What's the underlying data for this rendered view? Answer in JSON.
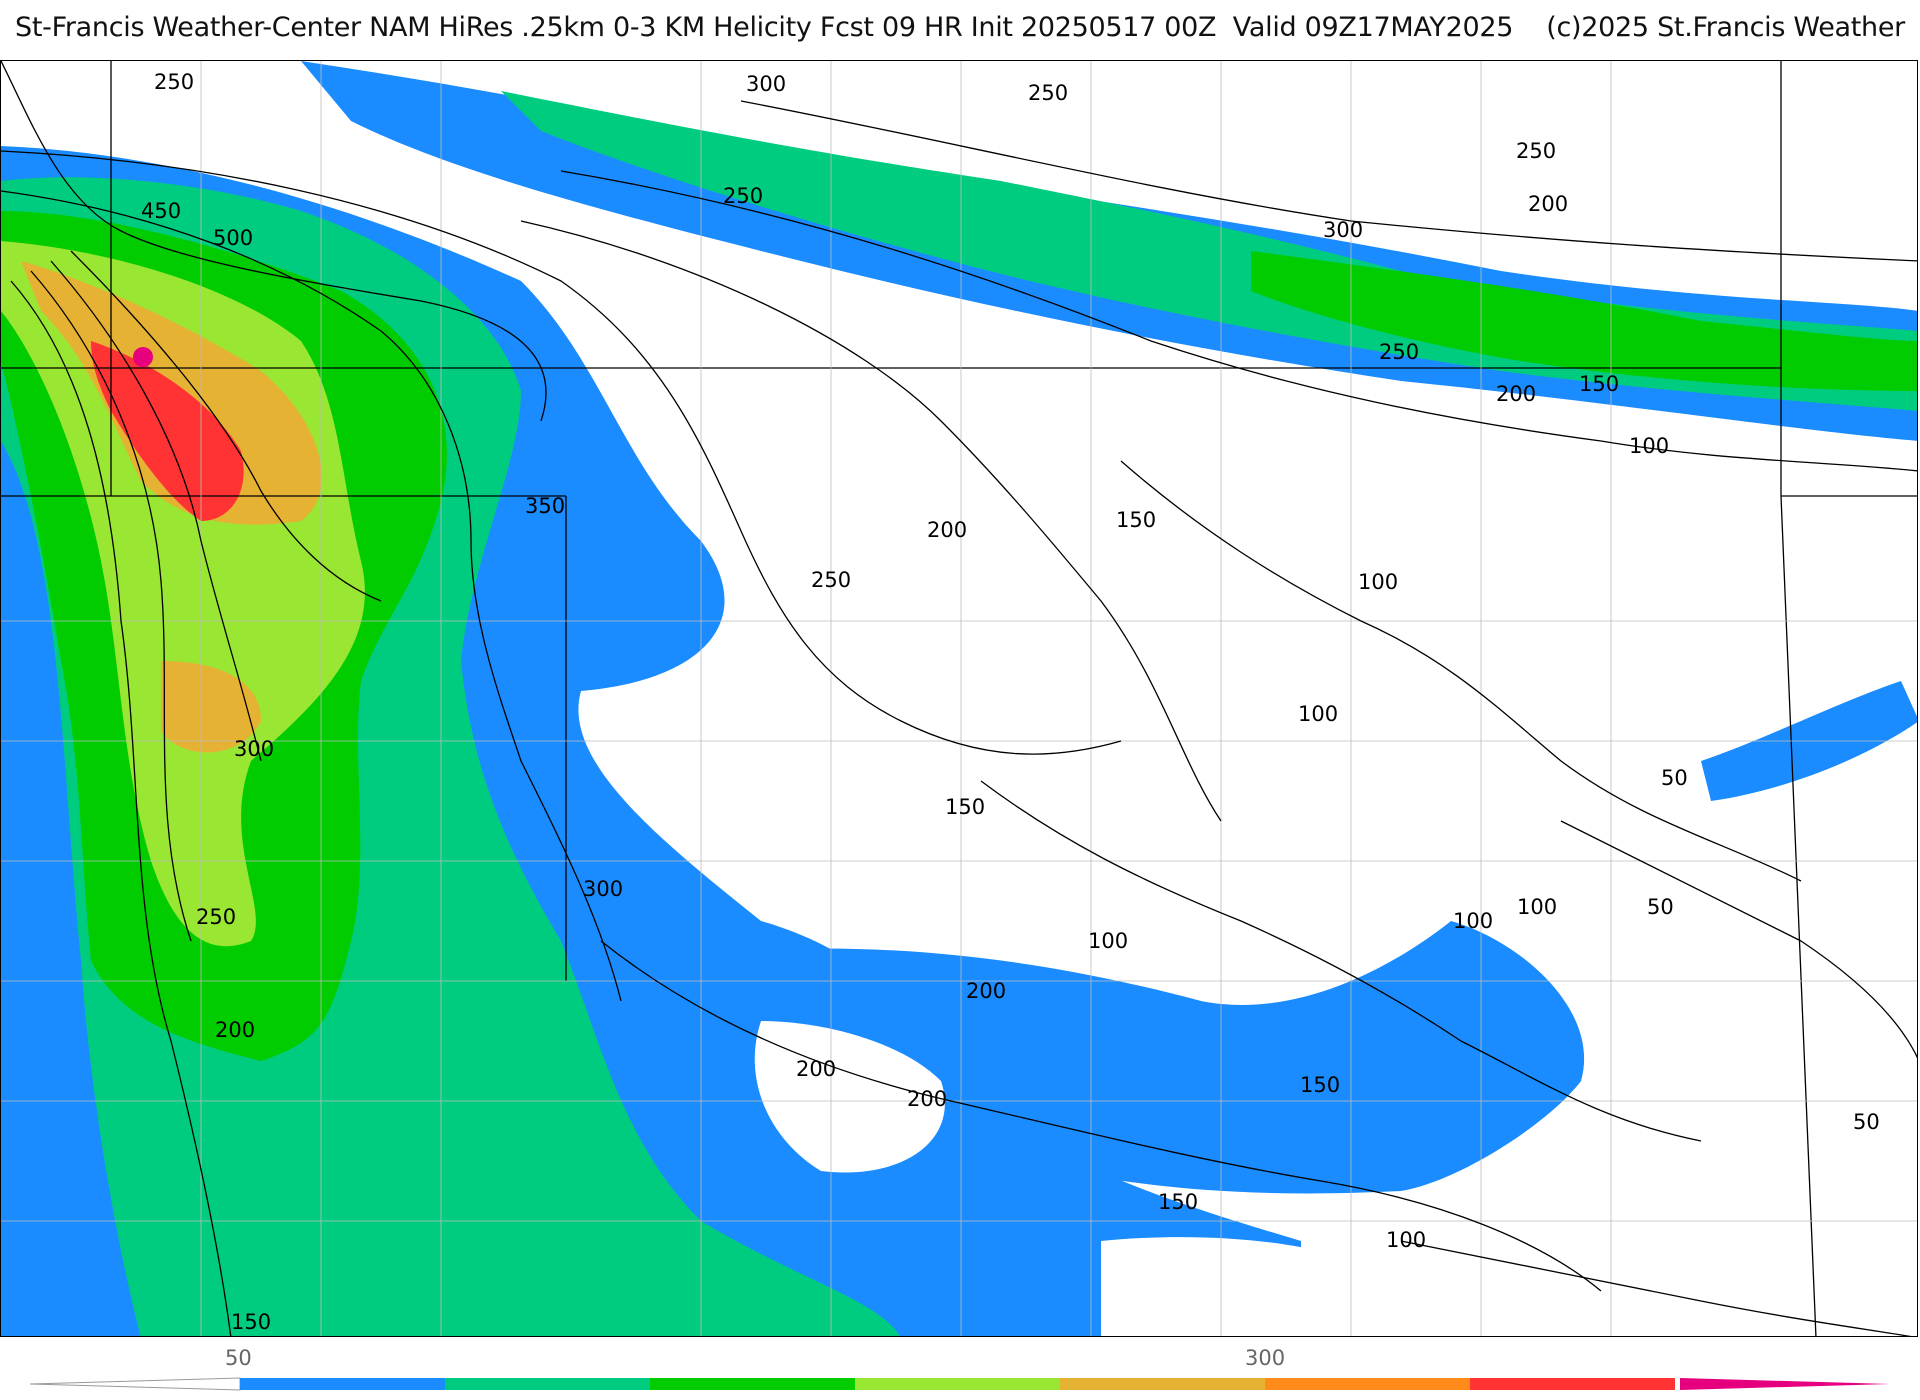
{
  "title": "St-Francis Weather-Center NAM HiRes .25km 0-3 KM Helicity Fcst 09 HR Init 20250517 00Z  Valid 09Z17MAY2025    (c)2025 St.Francis Weather",
  "units_hint": "0-3 KM Helicity",
  "colorbar": {
    "tick_labels": [
      "50",
      "300"
    ],
    "colors": [
      "#1a8cff",
      "#00cc80",
      "#00cc00",
      "#99e633",
      "#e6b233",
      "#ff8c1a",
      "#ff3333",
      "#e6007e"
    ]
  },
  "contour_labels": [
    "250",
    "300",
    "250",
    "250",
    "200",
    "300",
    "250",
    "450",
    "500",
    "250",
    "200",
    "150",
    "100",
    "350",
    "200",
    "150",
    "250",
    "100",
    "100",
    "300",
    "50",
    "150",
    "300",
    "100",
    "100",
    "50",
    "250",
    "100",
    "200",
    "150",
    "200",
    "200",
    "200",
    "150",
    "100",
    "50",
    "150"
  ],
  "map_features": [
    "state-borders",
    "county-borders",
    "helicity-contours",
    "helicity-shading"
  ]
}
